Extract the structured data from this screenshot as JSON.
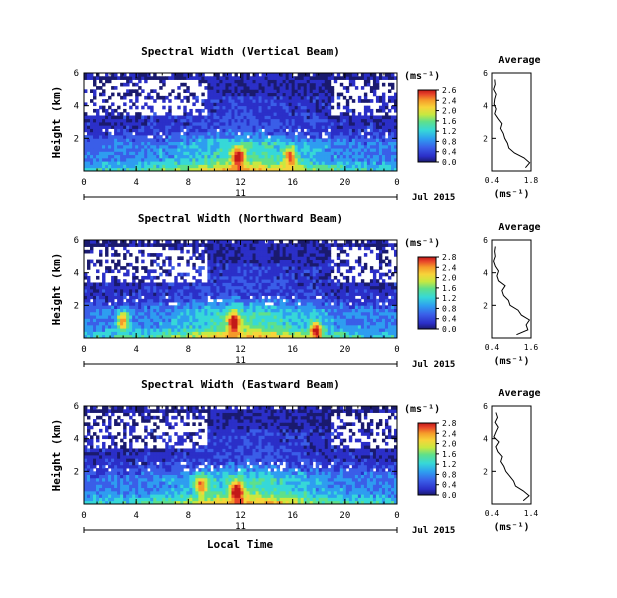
{
  "figure": {
    "xlabel": "Local Time",
    "date_label": "Jul 2015",
    "day_label": "11",
    "colorbar_unit": "(ms⁻¹)",
    "profile_xlabel": "(ms⁻¹)",
    "profile_title": "Average",
    "height_label": "Height (km)",
    "colormap": [
      "#1a1a6e",
      "#2b2fc8",
      "#3a5ee8",
      "#2e9df0",
      "#36d8d8",
      "#5fe08a",
      "#c8e840",
      "#f7d43a",
      "#f59a2a",
      "#e8452a",
      "#c21818"
    ]
  },
  "chart_data": [
    {
      "type": "heatmap",
      "title": "Spectral Width (Vertical Beam)",
      "ylabel": "Height (km)",
      "xlabel": "Local Time",
      "x_ticks": [
        "0",
        "4",
        "8",
        "12",
        "16",
        "20",
        "0"
      ],
      "y_ticks": [
        "6",
        "4",
        "2"
      ],
      "xlim": [
        0,
        24
      ],
      "ylim": [
        0,
        6
      ],
      "colorbar": {
        "unit": "(ms⁻¹)",
        "ticks": [
          "2.6",
          "2.4",
          "2.0",
          "1.6",
          "1.2",
          "0.8",
          "0.4",
          "0.0"
        ],
        "range": [
          0.0,
          2.8
        ]
      },
      "hotspots": [
        {
          "time": 11.8,
          "height": 0.9,
          "value": 2.6
        },
        {
          "time": 15.8,
          "height": 0.9,
          "value": 2.0
        }
      ],
      "profile": {
        "title": "Average",
        "xlabel": "(ms⁻¹)",
        "x_ticks": [
          "0.4",
          "1.8"
        ],
        "xlim": [
          0.4,
          1.8
        ],
        "y_ticks": [
          "6",
          "4",
          "2"
        ],
        "ylim": [
          0,
          6
        ],
        "heights": [
          0.2,
          0.5,
          0.8,
          1.1,
          1.4,
          1.7,
          2.0,
          2.3,
          2.6,
          2.9,
          3.2,
          3.5,
          3.8,
          4.1,
          4.4,
          4.7,
          5.0,
          5.3,
          5.6
        ],
        "values": [
          1.6,
          1.75,
          1.55,
          1.2,
          1.0,
          0.95,
          0.85,
          0.8,
          0.7,
          0.75,
          0.62,
          0.5,
          0.55,
          0.48,
          0.5,
          0.55,
          0.46,
          0.52,
          0.5
        ]
      }
    },
    {
      "type": "heatmap",
      "title": "Spectral Width (Northward Beam)",
      "ylabel": "Height (km)",
      "xlabel": "Local Time",
      "x_ticks": [
        "0",
        "4",
        "8",
        "12",
        "16",
        "20",
        "0"
      ],
      "y_ticks": [
        "6",
        "4",
        "2"
      ],
      "xlim": [
        0,
        24
      ],
      "ylim": [
        0,
        6
      ],
      "colorbar": {
        "unit": "(ms⁻¹)",
        "ticks": [
          "2.8",
          "2.4",
          "2.0",
          "1.6",
          "1.2",
          "0.8",
          "0.4",
          "0.0"
        ],
        "range": [
          0.0,
          2.8
        ]
      },
      "hotspots": [
        {
          "time": 11.5,
          "height": 1.0,
          "value": 2.8
        },
        {
          "time": 3.0,
          "height": 1.1,
          "value": 2.2
        },
        {
          "time": 17.8,
          "height": 0.5,
          "value": 2.4
        }
      ],
      "profile": {
        "title": "Average",
        "xlabel": "(ms⁻¹)",
        "x_ticks": [
          "0.4",
          "1.6"
        ],
        "xlim": [
          0.4,
          1.6
        ],
        "y_ticks": [
          "6",
          "4",
          "2"
        ],
        "ylim": [
          0,
          6
        ],
        "heights": [
          0.2,
          0.5,
          0.8,
          1.1,
          1.4,
          1.7,
          2.0,
          2.3,
          2.6,
          2.9,
          3.2,
          3.5,
          3.8,
          4.1,
          4.4,
          4.7,
          5.0,
          5.3,
          5.6
        ],
        "values": [
          1.15,
          1.5,
          1.45,
          1.55,
          1.3,
          1.2,
          0.95,
          0.9,
          0.75,
          0.7,
          0.8,
          0.6,
          0.55,
          0.6,
          0.5,
          0.45,
          0.5,
          0.48,
          0.5
        ]
      }
    },
    {
      "type": "heatmap",
      "title": "Spectral Width (Eastward Beam)",
      "ylabel": "Height (km)",
      "xlabel": "Local Time",
      "x_ticks": [
        "0",
        "4",
        "8",
        "12",
        "16",
        "20",
        "0"
      ],
      "y_ticks": [
        "6",
        "4",
        "2"
      ],
      "xlim": [
        0,
        24
      ],
      "ylim": [
        0,
        6
      ],
      "colorbar": {
        "unit": "(ms⁻¹)",
        "ticks": [
          "2.8",
          "2.4",
          "2.0",
          "1.6",
          "1.2",
          "0.8",
          "0.4",
          "0.0"
        ],
        "range": [
          0.0,
          2.8
        ]
      },
      "hotspots": [
        {
          "time": 11.7,
          "height": 0.8,
          "value": 2.8
        },
        {
          "time": 9.0,
          "height": 1.2,
          "value": 2.0
        }
      ],
      "profile": {
        "title": "Average",
        "xlabel": "(ms⁻¹)",
        "x_ticks": [
          "0.4",
          "1.4"
        ],
        "xlim": [
          0.4,
          1.4
        ],
        "y_ticks": [
          "6",
          "4",
          "2"
        ],
        "ylim": [
          0,
          6
        ],
        "heights": [
          0.2,
          0.5,
          0.8,
          1.1,
          1.4,
          1.7,
          2.0,
          2.3,
          2.6,
          2.9,
          3.2,
          3.5,
          3.8,
          4.1,
          4.4,
          4.7,
          5.0,
          5.3,
          5.6
        ],
        "values": [
          1.2,
          1.35,
          1.2,
          1.0,
          0.95,
          0.85,
          0.75,
          0.7,
          0.62,
          0.66,
          0.55,
          0.5,
          0.58,
          0.45,
          0.5,
          0.56,
          0.48,
          0.54,
          0.5
        ]
      }
    }
  ]
}
